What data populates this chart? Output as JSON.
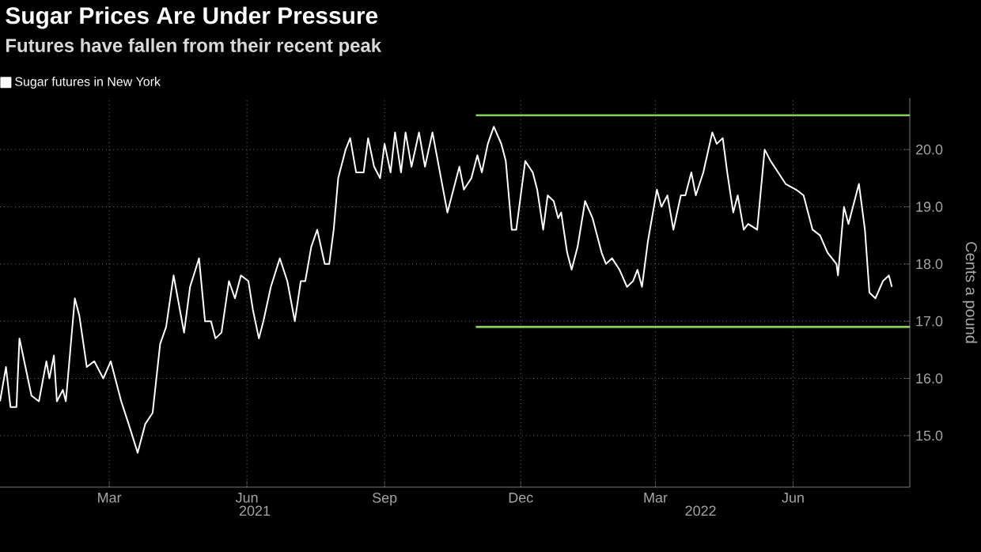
{
  "chart_data": {
    "type": "line",
    "title": "Sugar Prices Are Under Pressure",
    "subtitle": "Futures have fallen from their recent peak",
    "ylabel": "Cents a pound",
    "xlim": [
      "2021-01-01",
      "2022-09-01"
    ],
    "ylim": [
      14.1,
      20.9
    ],
    "xticks": [
      {
        "value": "2021-03-15",
        "label": "Mar"
      },
      {
        "value": "2021-06-15",
        "label": "Jun"
      },
      {
        "value": "2021-09-15",
        "label": "Sep"
      },
      {
        "value": "2021-12-15",
        "label": "Dec"
      },
      {
        "value": "2022-03-15",
        "label": "Mar"
      },
      {
        "value": "2022-06-15",
        "label": "Jun"
      }
    ],
    "yticks": [
      {
        "value": 15,
        "label": "15.0"
      },
      {
        "value": 16,
        "label": "16.0"
      },
      {
        "value": 17,
        "label": "17.0"
      },
      {
        "value": 18,
        "label": "18.0"
      },
      {
        "value": 19,
        "label": "19.0"
      },
      {
        "value": 20,
        "label": "20.0"
      }
    ],
    "grid": true,
    "legend": "top left",
    "marker": "none",
    "line_style": "solid",
    "annotations": [
      "2021",
      "2022"
    ],
    "series": [
      {
        "name": "Sugar futures in New York",
        "color": "#ffffff",
        "x": [
          "2021-01-01",
          "2021-01-05",
          "2021-01-08",
          "2021-01-12",
          "2021-01-14",
          "2021-01-18",
          "2021-01-22",
          "2021-01-27",
          "2021-02-01",
          "2021-02-03",
          "2021-02-06",
          "2021-02-08",
          "2021-02-12",
          "2021-02-14",
          "2021-02-20",
          "2021-02-23",
          "2021-02-28",
          "2021-03-05",
          "2021-03-11",
          "2021-03-16",
          "2021-03-23",
          "2021-03-28",
          "2021-04-03",
          "2021-04-08",
          "2021-04-13",
          "2021-04-18",
          "2021-04-22",
          "2021-04-27",
          "2021-05-04",
          "2021-05-08",
          "2021-05-14",
          "2021-05-18",
          "2021-05-22",
          "2021-05-25",
          "2021-05-29",
          "2021-06-03",
          "2021-06-07",
          "2021-06-11",
          "2021-06-16",
          "2021-06-19",
          "2021-06-23",
          "2021-06-26",
          "2021-07-01",
          "2021-07-07",
          "2021-07-12",
          "2021-07-17",
          "2021-07-21",
          "2021-07-24",
          "2021-07-28",
          "2021-08-01",
          "2021-08-06",
          "2021-08-09",
          "2021-08-12",
          "2021-08-15",
          "2021-08-20",
          "2021-08-23",
          "2021-08-27",
          "2021-09-01",
          "2021-09-04",
          "2021-09-08",
          "2021-09-12",
          "2021-09-15",
          "2021-09-19",
          "2021-09-22",
          "2021-09-26",
          "2021-09-29",
          "2021-10-03",
          "2021-10-08",
          "2021-10-12",
          "2021-10-17",
          "2021-10-22",
          "2021-10-27",
          "2021-10-31",
          "2021-11-04",
          "2021-11-07",
          "2021-11-12",
          "2021-11-16",
          "2021-11-19",
          "2021-11-23",
          "2021-11-27",
          "2021-12-02",
          "2021-12-05",
          "2021-12-09",
          "2021-12-12",
          "2021-12-18",
          "2021-12-23",
          "2021-12-26",
          "2021-12-30",
          "2022-01-02",
          "2022-01-06",
          "2022-01-09",
          "2022-01-11",
          "2022-01-15",
          "2022-01-18",
          "2022-01-22",
          "2022-01-27",
          "2022-02-01",
          "2022-02-07",
          "2022-02-10",
          "2022-02-14",
          "2022-02-19",
          "2022-02-24",
          "2022-02-28",
          "2022-03-03",
          "2022-03-06",
          "2022-03-10",
          "2022-03-16",
          "2022-03-19",
          "2022-03-23",
          "2022-03-27",
          "2022-04-01",
          "2022-04-04",
          "2022-04-08",
          "2022-04-11",
          "2022-04-16",
          "2022-04-22",
          "2022-04-25",
          "2022-04-29",
          "2022-05-02",
          "2022-05-06",
          "2022-05-09",
          "2022-05-13",
          "2022-05-16",
          "2022-05-22",
          "2022-05-27",
          "2022-05-31",
          "2022-06-05",
          "2022-06-10",
          "2022-06-17",
          "2022-06-22",
          "2022-06-28",
          "2022-07-03",
          "2022-07-08",
          "2022-07-14",
          "2022-07-15",
          "2022-07-19",
          "2022-07-22",
          "2022-07-26",
          "2022-07-29",
          "2022-08-02",
          "2022-08-05",
          "2022-08-09",
          "2022-08-14",
          "2022-08-18",
          "2022-08-20"
        ],
        "values": [
          15.6,
          16.2,
          15.5,
          15.5,
          16.7,
          16.2,
          15.7,
          15.6,
          16.3,
          16.0,
          16.4,
          15.6,
          15.8,
          15.6,
          17.4,
          17.1,
          16.2,
          16.3,
          16.0,
          16.3,
          15.6,
          15.2,
          14.7,
          15.2,
          15.4,
          16.6,
          16.9,
          17.8,
          16.8,
          17.6,
          18.1,
          17.0,
          17.0,
          16.7,
          16.8,
          17.7,
          17.4,
          17.8,
          17.7,
          17.2,
          16.7,
          17.0,
          17.6,
          18.1,
          17.7,
          17.0,
          17.7,
          17.7,
          18.3,
          18.6,
          18.0,
          18.0,
          18.6,
          19.5,
          20.0,
          20.2,
          19.6,
          19.6,
          20.2,
          19.7,
          19.5,
          20.1,
          19.6,
          20.3,
          19.6,
          20.3,
          19.7,
          20.3,
          19.7,
          20.3,
          19.6,
          18.9,
          19.3,
          19.7,
          19.3,
          19.5,
          19.9,
          19.6,
          20.1,
          20.4,
          20.1,
          19.8,
          18.6,
          18.6,
          19.8,
          19.6,
          19.3,
          18.6,
          19.2,
          19.1,
          18.8,
          18.9,
          18.2,
          17.9,
          18.3,
          19.1,
          18.8,
          18.2,
          18.0,
          18.1,
          17.9,
          17.6,
          17.7,
          17.9,
          17.6,
          18.4,
          19.3,
          19.0,
          19.2,
          18.6,
          19.2,
          19.2,
          19.6,
          19.2,
          19.6,
          20.3,
          20.1,
          20.2,
          19.6,
          18.9,
          19.2,
          18.6,
          18.7,
          18.6,
          20.0,
          19.8,
          19.6,
          19.4,
          19.3,
          19.2,
          18.6,
          18.5,
          18.2,
          18.0,
          17.8,
          19.0,
          18.7,
          19.1,
          19.4,
          18.6,
          17.5,
          17.4,
          17.7,
          17.8,
          17.6
        ]
      },
      {
        "type": "line",
        "color": "#7ed348",
        "x": [
          "2021-11-15",
          "2022-09-01"
        ],
        "values": [
          20.6,
          20.6
        ]
      },
      {
        "type": "line",
        "color": "#7ed348",
        "x": [
          "2021-11-15",
          "2022-09-01"
        ],
        "values": [
          16.9,
          16.9
        ]
      }
    ]
  }
}
